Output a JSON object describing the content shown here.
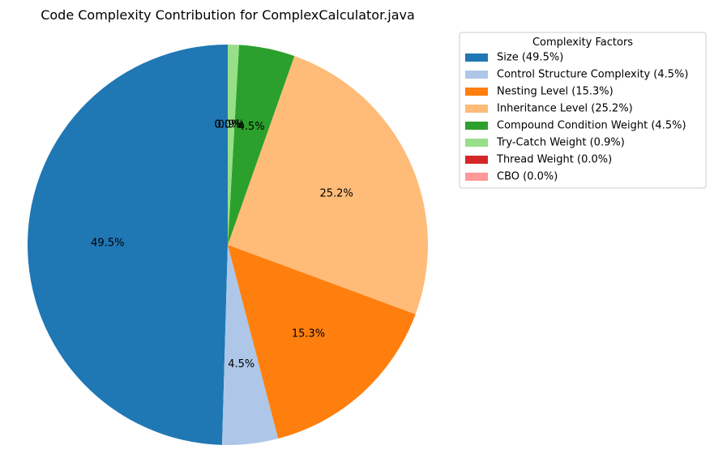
{
  "chart_data": {
    "type": "pie",
    "title": "Code Complexity Contribution for ComplexCalculator.java",
    "start_angle": "top",
    "direction": "counterclockwise",
    "slices": [
      {
        "name": "Size",
        "value": 49.5,
        "label": "49.5%",
        "legend": "Size (49.5%)",
        "color": "#1f77b4"
      },
      {
        "name": "Control Structure Complexity",
        "value": 4.5,
        "label": "4.5%",
        "legend": "Control Structure Complexity (4.5%)",
        "color": "#aec7e8"
      },
      {
        "name": "Nesting Level",
        "value": 15.3,
        "label": "15.3%",
        "legend": "Nesting Level (15.3%)",
        "color": "#ff7f0e"
      },
      {
        "name": "Inheritance Level",
        "value": 25.2,
        "label": "25.2%",
        "legend": "Inheritance Level (25.2%)",
        "color": "#ffbb78"
      },
      {
        "name": "Compound Condition Weight",
        "value": 4.5,
        "label": "4.5%",
        "legend": "Compound Condition Weight (4.5%)",
        "color": "#2ca02c"
      },
      {
        "name": "Try-Catch Weight",
        "value": 0.9,
        "label": "0.9%",
        "legend": "Try-Catch Weight (0.9%)",
        "color": "#98df8a"
      },
      {
        "name": "Thread Weight",
        "value": 0.0,
        "label": "0.0%",
        "legend": "Thread Weight (0.0%)",
        "color": "#d62728"
      },
      {
        "name": "CBO",
        "value": 0.0,
        "label": "0.0%",
        "legend": "CBO (0.0%)",
        "color": "#ff9896"
      }
    ],
    "legend": {
      "title": "Complexity Factors",
      "placement": "top-right, outside plot"
    }
  }
}
